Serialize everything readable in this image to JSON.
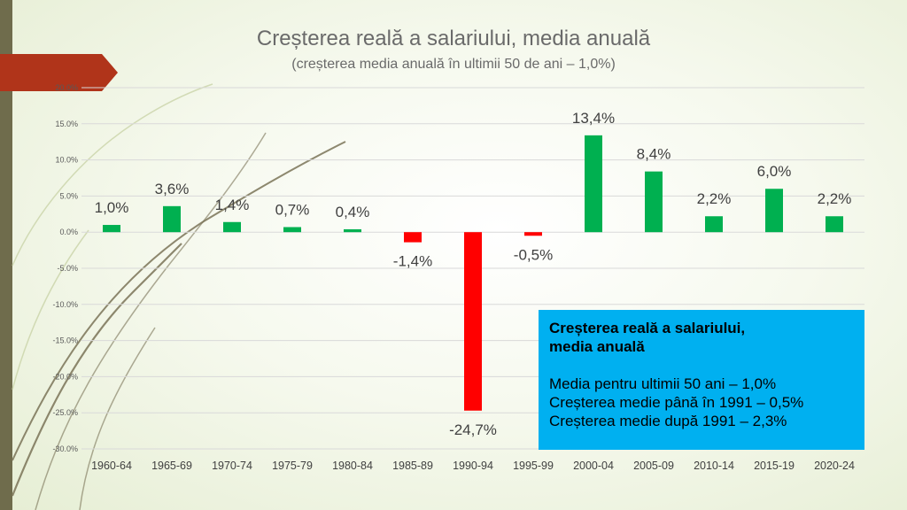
{
  "title": "Creșterea reală a salariului, media anuală",
  "subtitle": "(creșterea media anuală în ultimii 50 de ani – 1,0%)",
  "chart_data": {
    "type": "bar",
    "categories": [
      "1960-64",
      "1965-69",
      "1970-74",
      "1975-79",
      "1980-84",
      "1985-89",
      "1990-94",
      "1995-99",
      "2000-04",
      "2005-09",
      "2010-14",
      "2015-19",
      "2020-24"
    ],
    "values": [
      1.0,
      3.6,
      1.4,
      0.7,
      0.4,
      -1.4,
      -24.7,
      -0.5,
      13.4,
      8.4,
      2.2,
      6.0,
      2.2
    ],
    "data_labels": [
      "1,0%",
      "3,6%",
      "1,4%",
      "0,7%",
      "0,4%",
      "-1,4%",
      "-24,7%",
      "-0,5%",
      "13,4%",
      "8,4%",
      "2,2%",
      "6,0%",
      "2,2%"
    ],
    "ylim": [
      -30,
      20
    ],
    "yticks": [
      20,
      15,
      10,
      5,
      0,
      -5,
      -10,
      -15,
      -20,
      -25,
      -30
    ],
    "ytick_labels": [
      "20.0%",
      "15.0%",
      "10.0%",
      "5.0%",
      "0.0%",
      "-5.0%",
      "-10.0%",
      "-15.0%",
      "-20.0%",
      "-25.0%",
      "-30.0%"
    ],
    "grid": true,
    "colors": {
      "positive": "#00b050",
      "negative": "#ff0000",
      "grid": "#d9d9d9",
      "tick_text": "#595959"
    }
  },
  "info_box": {
    "heading_line1": "Creșterea reală a salariului,",
    "heading_line2": "media anuală",
    "line1": "Media pentru ultimii 50 ani – 1,0%",
    "line2": "Creșterea medie până în 1991 – 0,5%",
    "line3": "Creșterea medie după 1991 – 2,3%",
    "background": "#00b0f0"
  },
  "theme": {
    "strip_color": "#6f6c4c",
    "banner_color": "#b0341a",
    "curve_color": "#7a7357"
  }
}
